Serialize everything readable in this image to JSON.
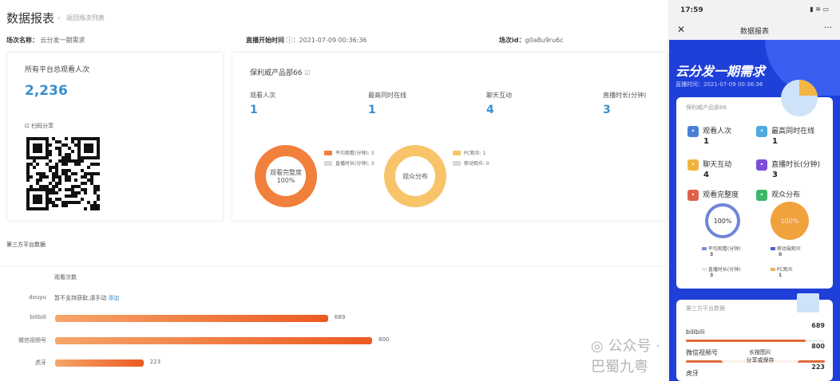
{
  "web": {
    "title": "数据报表",
    "back": "返回场次列表",
    "session_name_label": "场次名称：",
    "session_name": "云分发一期需求",
    "start_time_label": "直播开始时间",
    "start_time": "：2021-07-09 00:36:36",
    "session_id_label": "场次id：",
    "session_id": "g0a8u9ru6c",
    "total": {
      "label": "所有平台总观看人次",
      "value": "2,236",
      "scan_share": "扫码分享"
    },
    "product": {
      "name": "保利威产品部66",
      "stats": [
        {
          "label": "观看人次",
          "value": "1"
        },
        {
          "label": "最高同时在线",
          "value": "1"
        },
        {
          "label": "聊天互动",
          "value": "4"
        },
        {
          "label": "直播时长(分钟)",
          "value": "3"
        }
      ],
      "donut1": {
        "center": "观看完整度",
        "pct": "100%",
        "legend": [
          "平均观看(分钟): 3",
          "直播时长(分钟): 3"
        ],
        "colors": [
          "#f0803c",
          "#d5d8dc"
        ]
      },
      "donut2": {
        "center": "观众分布",
        "legend": [
          "PC观众: 1",
          "移动观众: 0"
        ],
        "colors": [
          "#f8c46a",
          "#d5d8dc"
        ]
      }
    },
    "third": {
      "title": "第三方平台数据",
      "col": "观看次数",
      "douyu": {
        "label": "douyu",
        "text": "暂不支持获取,请手动",
        "link": "添加"
      },
      "rows": [
        {
          "label": "bilibili",
          "value": 689
        },
        {
          "label": "微信视频号",
          "value": 800
        },
        {
          "label": "虎牙",
          "value": 223
        }
      ]
    }
  },
  "phone": {
    "time": "17:59",
    "title": "数据报表",
    "hero": "云分发一期需求",
    "live_time": "直播时间：2021-07-09 00:36:36",
    "product": "保利威产品部66",
    "stats": [
      {
        "label": "观看人次",
        "value": "1",
        "color": "#4a7fd8"
      },
      {
        "label": "最高同时在线",
        "value": "1",
        "color": "#4fa8e0"
      },
      {
        "label": "聊天互动",
        "value": "4",
        "color": "#f2b23e"
      },
      {
        "label": "直播时长(分钟)",
        "value": "3",
        "color": "#7a4ed8"
      }
    ],
    "sec2": [
      {
        "label": "观看完整度",
        "color": "#e0614a"
      },
      {
        "label": "观众分布",
        "color": "#3db86b"
      }
    ],
    "donut1": "100%",
    "donut2": "100%",
    "leg1": [
      {
        "label": "平均观看(分钟)",
        "value": "3"
      },
      {
        "label": "直播时长(分钟)",
        "value": "3"
      }
    ],
    "leg2": [
      {
        "label": "移动端观众",
        "value": "0"
      },
      {
        "label": "PC观众",
        "value": "1"
      }
    ],
    "third_title": "第三方平台数据",
    "rows": [
      {
        "label": "bilibili",
        "value": "689"
      },
      {
        "label": "微信视频号",
        "value": "800"
      },
      {
        "label": "虎牙",
        "value": "223"
      }
    ],
    "overlay": {
      "line1": "长按图片",
      "line2": "分享或保存"
    }
  },
  "watermark": "公众号 · 巴蜀九粤"
}
